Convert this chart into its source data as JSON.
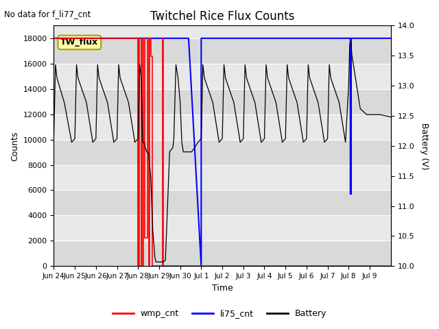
{
  "title": "Twitchel Rice Flux Counts",
  "no_data_text": "No data for f_li77_cnt",
  "box_label": "TW_flux",
  "xlabel": "Time",
  "ylabel_left": "Counts",
  "ylabel_right": "Battery (V)",
  "ylim_left": [
    0,
    19000
  ],
  "ylim_right": [
    10.0,
    14.0
  ],
  "yticks_left": [
    0,
    2000,
    4000,
    6000,
    8000,
    10000,
    12000,
    14000,
    16000,
    18000
  ],
  "yticks_right": [
    10.0,
    10.5,
    11.0,
    11.5,
    12.0,
    12.5,
    13.0,
    13.5,
    14.0
  ],
  "xtick_labels": [
    "Jun 24",
    "Jun 25",
    "Jun 26",
    "Jun 27",
    "Jun 28",
    "Jun 29",
    "Jun 30",
    "Jul 1",
    "Jul 2",
    "Jul 3",
    "Jul 4",
    "Jul 5",
    "Jul 6",
    "Jul 7",
    "Jul 8",
    "Jul 9"
  ],
  "bg_color": "#e8e8e8",
  "band_color": "#d0d0d0",
  "wmp_color": "red",
  "li75_color": "blue",
  "battery_color": "black",
  "legend_entries": [
    "wmp_cnt",
    "li75_cnt",
    "Battery"
  ],
  "wmp_cnt_x": [
    0,
    4.0,
    4.0,
    4.02,
    4.02,
    4.06,
    4.06,
    4.14,
    4.14,
    4.18,
    4.18,
    4.25,
    4.25,
    4.33,
    4.33,
    4.45,
    4.45,
    4.5,
    4.5,
    4.55,
    4.55,
    4.6,
    4.6,
    4.67,
    4.67,
    5.15,
    5.15,
    5.2,
    5.2,
    16
  ],
  "wmp_cnt_y": [
    18000,
    18000,
    0,
    0,
    18000,
    18000,
    0,
    0,
    18000,
    18000,
    0,
    0,
    18000,
    18000,
    2250,
    2250,
    18000,
    18000,
    0,
    0,
    18000,
    18000,
    16600,
    16600,
    0,
    0,
    18000,
    18000,
    0,
    0
  ],
  "li75_cnt_x": [
    0,
    6.4,
    7.0,
    7.0,
    14.08,
    14.08,
    14.12,
    14.12,
    16
  ],
  "li75_cnt_y": [
    18000,
    18000,
    0,
    18000,
    18000,
    5700,
    5700,
    18000,
    18000
  ],
  "batt_x": [
    0,
    0.08,
    0.15,
    0.5,
    0.85,
    1.0,
    1.08,
    1.15,
    1.55,
    1.85,
    2.0,
    2.08,
    2.15,
    2.55,
    2.85,
    3.0,
    3.08,
    3.15,
    3.55,
    3.85,
    4.0,
    4.08,
    4.15,
    4.22,
    4.28,
    4.35,
    4.42,
    4.5,
    4.6,
    4.7,
    4.8,
    4.85,
    4.88,
    4.9,
    4.95,
    5.0,
    5.05,
    5.1,
    5.2,
    5.3,
    5.5,
    5.6,
    5.65,
    5.7,
    5.8,
    5.9,
    6.0,
    6.08,
    6.15,
    6.55,
    6.85,
    7.0,
    7.08,
    7.15,
    7.55,
    7.85,
    8.0,
    8.08,
    8.15,
    8.55,
    8.85,
    9.0,
    9.08,
    9.15,
    9.55,
    9.85,
    10.0,
    10.08,
    10.15,
    10.55,
    10.85,
    11.0,
    11.08,
    11.15,
    11.55,
    11.85,
    12.0,
    12.08,
    12.15,
    12.55,
    12.85,
    13.0,
    13.08,
    13.15,
    13.55,
    13.85,
    14.0,
    14.05,
    14.08,
    14.12,
    14.15,
    14.55,
    14.85,
    15.0,
    15.5,
    16.0
  ],
  "batt_v": [
    12.12,
    13.35,
    13.13,
    12.72,
    12.06,
    12.12,
    13.35,
    13.13,
    12.72,
    12.06,
    12.12,
    13.35,
    13.13,
    12.72,
    12.06,
    12.12,
    13.35,
    13.13,
    12.72,
    12.06,
    12.12,
    13.35,
    13.13,
    12.06,
    12.06,
    11.96,
    11.9,
    11.88,
    11.5,
    10.6,
    10.15,
    10.07,
    10.07,
    10.07,
    10.07,
    10.07,
    10.07,
    10.07,
    10.07,
    10.1,
    11.9,
    11.95,
    11.97,
    12.12,
    13.35,
    13.13,
    12.72,
    12.06,
    11.9,
    11.9,
    12.06,
    12.12,
    13.35,
    13.13,
    12.72,
    12.06,
    12.12,
    13.35,
    13.13,
    12.72,
    12.06,
    12.12,
    13.35,
    13.13,
    12.72,
    12.06,
    12.12,
    13.35,
    13.13,
    12.72,
    12.06,
    12.12,
    13.35,
    13.13,
    12.72,
    12.06,
    12.12,
    13.35,
    13.13,
    12.72,
    12.06,
    12.12,
    13.35,
    13.13,
    12.72,
    12.06,
    13.0,
    13.68,
    13.72,
    13.7,
    13.52,
    12.62,
    12.52,
    12.52,
    12.52,
    12.48
  ]
}
